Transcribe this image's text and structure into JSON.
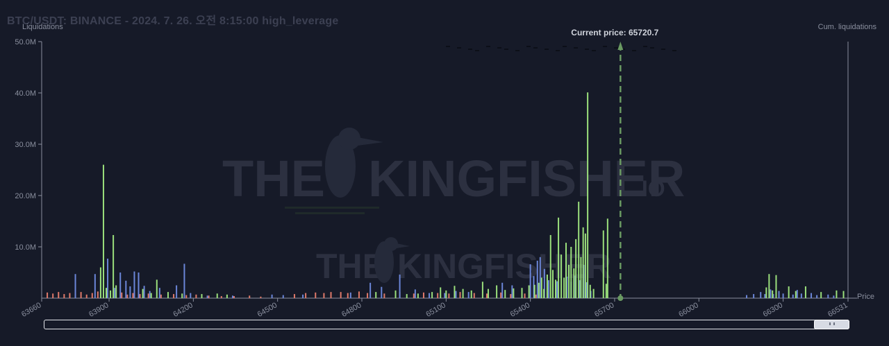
{
  "header": {
    "title": "BTC/USDT: BINANCE - 2024. 7. 26. 오전 8:15:00 high_leverage"
  },
  "watermark": {
    "brand_main": "THE KINGFISHER",
    "brand_suffix": ".IO",
    "color": "#2c3040"
  },
  "colors": {
    "background": "#161a28",
    "long_green": "#9be07c",
    "short_red": "#e07a6a",
    "blue": "#6b86d8",
    "current_price_line": "#6a9a62",
    "axis": "#8a8f9e"
  },
  "chart_data": {
    "type": "bar",
    "title": "BTC/USDT: BINANCE - 2024. 7. 26. 오전 8:15:00 high_leverage",
    "ylabel": "Liquidations",
    "y2label": "Cum. liquidations",
    "xlabel": "Price",
    "xlim": [
      63660,
      66531
    ],
    "ylim": [
      0,
      50000000
    ],
    "y_ticks": [
      "10.0M",
      "20.0M",
      "30.0M",
      "40.0M",
      "50.0M"
    ],
    "y_tick_values": [
      10000000,
      20000000,
      30000000,
      40000000,
      50000000
    ],
    "x_ticks": [
      63660,
      63900,
      64200,
      64500,
      64800,
      65100,
      65400,
      65700,
      66000,
      66300,
      66531
    ],
    "current_price": 65720.7,
    "current_price_label": "Current price: 65720.7",
    "series": [
      {
        "name": "green",
        "color": "#9be07c",
        "points": [
          [
            63870,
            6000000
          ],
          [
            63880,
            26000000
          ],
          [
            63890,
            2000000
          ],
          [
            63905,
            1500000
          ],
          [
            63915,
            12300000
          ],
          [
            63925,
            2500000
          ],
          [
            64020,
            1800000
          ],
          [
            64050,
            1000000
          ],
          [
            64070,
            3600000
          ],
          [
            64110,
            1200000
          ],
          [
            64160,
            900000
          ],
          [
            64230,
            800000
          ],
          [
            64285,
            900000
          ],
          [
            64320,
            700000
          ],
          [
            64850,
            1200000
          ],
          [
            64920,
            1500000
          ],
          [
            64960,
            800000
          ],
          [
            65000,
            900000
          ],
          [
            65050,
            1200000
          ],
          [
            65080,
            2100000
          ],
          [
            65100,
            1500000
          ],
          [
            65130,
            2400000
          ],
          [
            65160,
            1800000
          ],
          [
            65190,
            1500000
          ],
          [
            65230,
            3200000
          ],
          [
            65250,
            1800000
          ],
          [
            65280,
            2500000
          ],
          [
            65310,
            1600000
          ],
          [
            65340,
            1900000
          ],
          [
            65370,
            2000000
          ],
          [
            65395,
            2500000
          ],
          [
            65415,
            2600000
          ],
          [
            65430,
            3000000
          ],
          [
            65440,
            4000000
          ],
          [
            65448,
            1800000
          ],
          [
            65460,
            4600000
          ],
          [
            65472,
            12300000
          ],
          [
            65480,
            5500000
          ],
          [
            65490,
            3600000
          ],
          [
            65500,
            15700000
          ],
          [
            65510,
            8500000
          ],
          [
            65520,
            4000000
          ],
          [
            65527,
            10800000
          ],
          [
            65537,
            6500000
          ],
          [
            65545,
            10000000
          ],
          [
            65555,
            5800000
          ],
          [
            65562,
            11500000
          ],
          [
            65572,
            18800000
          ],
          [
            65580,
            8000000
          ],
          [
            65588,
            13800000
          ],
          [
            65596,
            12600000
          ],
          [
            65604,
            40100000
          ],
          [
            65613,
            2600000
          ],
          [
            65625,
            1800000
          ],
          [
            65660,
            13200000
          ],
          [
            65670,
            2800000
          ],
          [
            65675,
            15500000
          ],
          [
            66240,
            2100000
          ],
          [
            66250,
            4700000
          ],
          [
            66262,
            1500000
          ],
          [
            66275,
            4500000
          ],
          [
            66320,
            2300000
          ],
          [
            66345,
            1400000
          ],
          [
            66380,
            2300000
          ],
          [
            66435,
            1200000
          ],
          [
            66490,
            1500000
          ],
          [
            66515,
            1400000
          ]
        ]
      },
      {
        "name": "red",
        "color": "#e07a6a",
        "points": [
          [
            63680,
            1100000
          ],
          [
            63700,
            900000
          ],
          [
            63720,
            1200000
          ],
          [
            63740,
            800000
          ],
          [
            63760,
            1000000
          ],
          [
            63780,
            900000
          ],
          [
            63800,
            1200000
          ],
          [
            63820,
            700000
          ],
          [
            63840,
            1000000
          ],
          [
            63860,
            1300000
          ],
          [
            63895,
            900000
          ],
          [
            63945,
            1100000
          ],
          [
            63965,
            700000
          ],
          [
            63985,
            1000000
          ],
          [
            64010,
            800000
          ],
          [
            64040,
            900000
          ],
          [
            64085,
            700000
          ],
          [
            64130,
            800000
          ],
          [
            64175,
            600000
          ],
          [
            64210,
            700000
          ],
          [
            64255,
            500000
          ],
          [
            64300,
            400000
          ],
          [
            64345,
            400000
          ],
          [
            64400,
            500000
          ],
          [
            64440,
            300000
          ],
          [
            64560,
            800000
          ],
          [
            64600,
            1000000
          ],
          [
            64635,
            1100000
          ],
          [
            64665,
            1000000
          ],
          [
            64690,
            1200000
          ],
          [
            64725,
            1200000
          ],
          [
            64750,
            1000000
          ],
          [
            64790,
            1300000
          ],
          [
            64820,
            1000000
          ],
          [
            64880,
            900000
          ],
          [
            64935,
            1200000
          ],
          [
            64985,
            900000
          ],
          [
            65020,
            1100000
          ],
          [
            65070,
            1000000
          ],
          [
            65110,
            900000
          ],
          [
            65150,
            1200000
          ],
          [
            65200,
            1000000
          ],
          [
            65245,
            900000
          ],
          [
            65295,
            1100000
          ],
          [
            65330,
            800000
          ],
          [
            65380,
            900000
          ],
          [
            65420,
            700000
          ]
        ]
      },
      {
        "name": "blue",
        "color": "#6b86d8",
        "points": [
          [
            63780,
            4700000
          ],
          [
            63850,
            4700000
          ],
          [
            63870,
            4100000
          ],
          [
            63895,
            7700000
          ],
          [
            63920,
            2000000
          ],
          [
            63940,
            5000000
          ],
          [
            63960,
            3400000
          ],
          [
            63975,
            2300000
          ],
          [
            63990,
            5200000
          ],
          [
            64005,
            5000000
          ],
          [
            64025,
            2400000
          ],
          [
            64045,
            1400000
          ],
          [
            64080,
            2000000
          ],
          [
            64140,
            2500000
          ],
          [
            64168,
            6700000
          ],
          [
            64190,
            1000000
          ],
          [
            64250,
            500000
          ],
          [
            64340,
            500000
          ],
          [
            64480,
            700000
          ],
          [
            64520,
            600000
          ],
          [
            64590,
            700000
          ],
          [
            64760,
            1100000
          ],
          [
            64830,
            3000000
          ],
          [
            64870,
            2200000
          ],
          [
            64935,
            4600000
          ],
          [
            64990,
            1700000
          ],
          [
            65040,
            1000000
          ],
          [
            65095,
            1000000
          ],
          [
            65135,
            1400000
          ],
          [
            65180,
            1200000
          ],
          [
            65300,
            3000000
          ],
          [
            65335,
            2500000
          ],
          [
            65400,
            6600000
          ],
          [
            65412,
            4300000
          ],
          [
            65425,
            7300000
          ],
          [
            65435,
            8000000
          ],
          [
            65450,
            5700000
          ],
          [
            65465,
            3500000
          ],
          [
            65480,
            4200000
          ],
          [
            65495,
            3300000
          ],
          [
            65530,
            4200000
          ],
          [
            65545,
            3200000
          ],
          [
            65560,
            4400000
          ],
          [
            65575,
            3500000
          ],
          [
            65590,
            6500000
          ],
          [
            65600,
            3100000
          ],
          [
            65615,
            1400000
          ],
          [
            66170,
            600000
          ],
          [
            66195,
            800000
          ],
          [
            66220,
            1200000
          ],
          [
            66235,
            800000
          ],
          [
            66255,
            1700000
          ],
          [
            66265,
            800000
          ],
          [
            66285,
            1400000
          ],
          [
            66300,
            900000
          ],
          [
            66335,
            700000
          ],
          [
            66350,
            1600000
          ],
          [
            66365,
            900000
          ],
          [
            66400,
            1000000
          ],
          [
            66420,
            600000
          ],
          [
            66460,
            700000
          ],
          [
            66480,
            500000
          ]
        ]
      }
    ],
    "grid": false,
    "legend": "none"
  },
  "scrollbar": {
    "grip": "grip-icon"
  }
}
